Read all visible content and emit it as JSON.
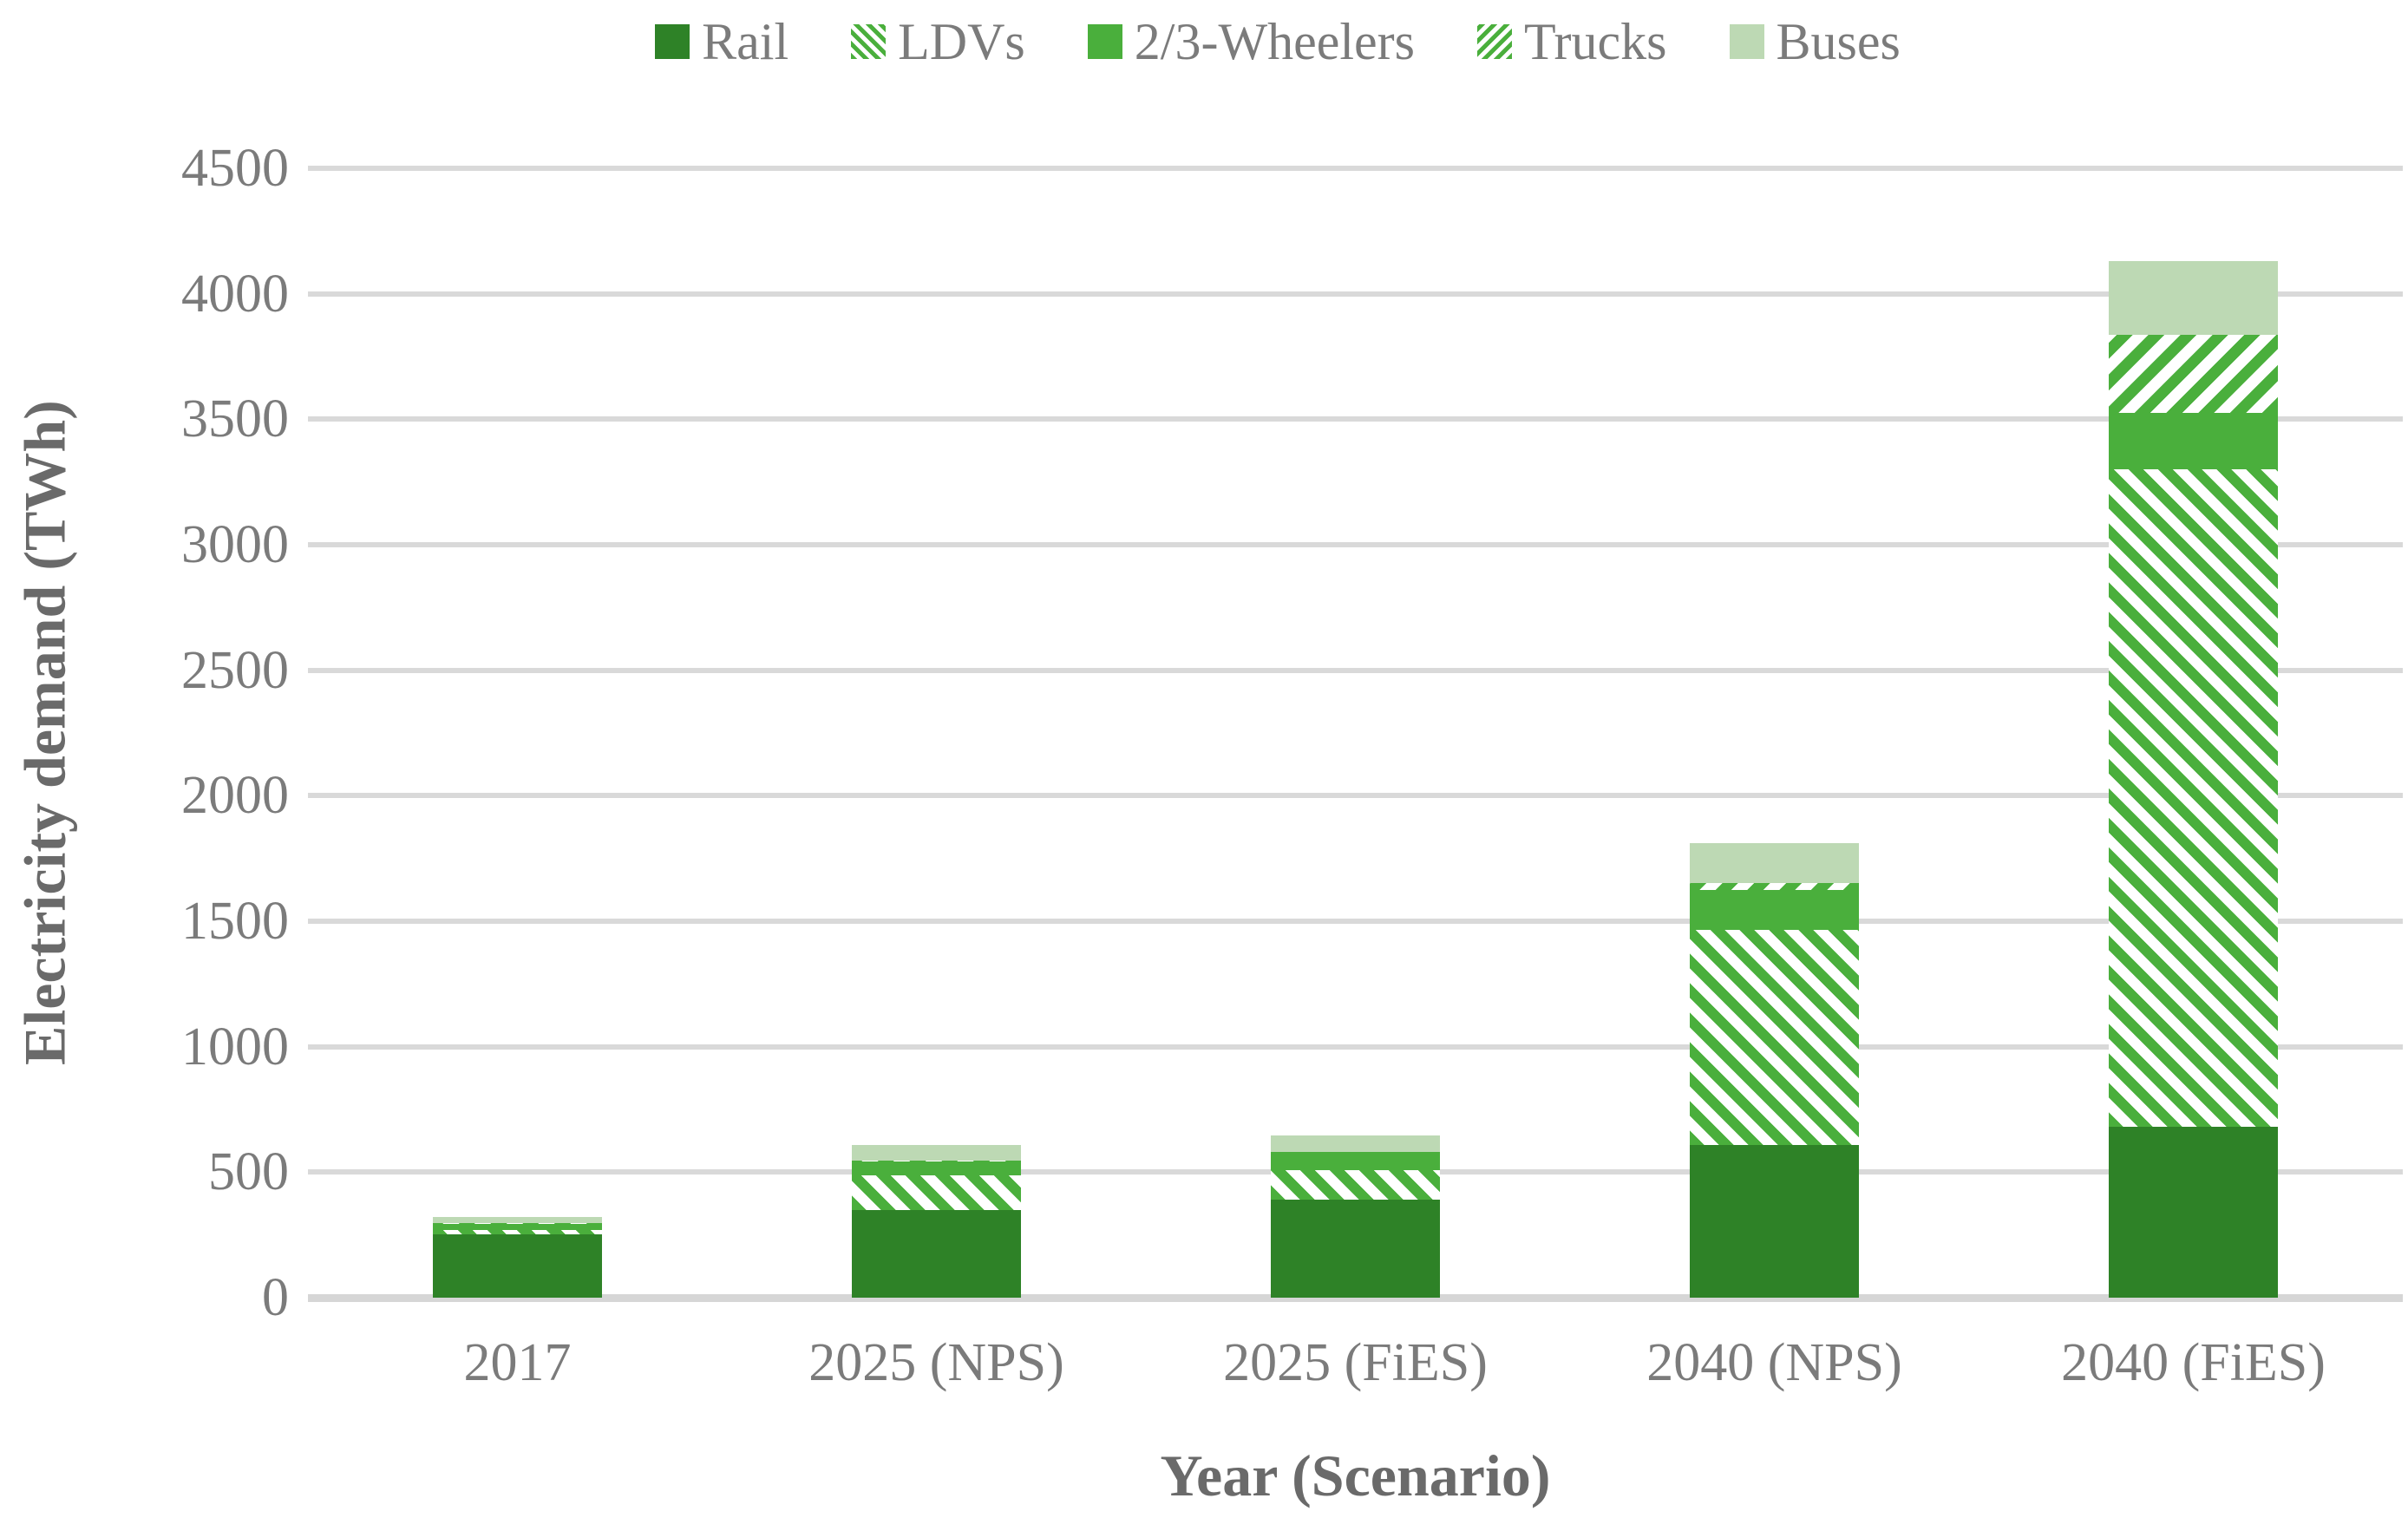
{
  "colors": {
    "rail_green": "#2E8227",
    "mid_green": "#4AAF3C",
    "buses_green": "#BDD9B4",
    "hatch_white": "#FFFFFF",
    "tick_text": "#7B7B7B",
    "title_text": "#6A6A6A",
    "gridline": "#D9D9D9",
    "axis_line": "#D6D6D6",
    "background": "#FFFFFF"
  },
  "chart_data": {
    "type": "bar",
    "stacked": true,
    "title": "",
    "xlabel": "Year (Scenario)",
    "ylabel": "Electricity demand (TWh)",
    "categories": [
      "2017",
      "2025 (NPS)",
      "2025 (FiES)",
      "2040 (NPS)",
      "2040 (FiES)"
    ],
    "series": [
      {
        "name": "Rail",
        "slug": "rail",
        "fill": "solid",
        "color": "#2E8227",
        "values": [
          253,
          350,
          390,
          610,
          680
        ]
      },
      {
        "name": "LDVs",
        "slug": "ldvs",
        "fill": "hatch-backslash",
        "color": "#4AAF3C",
        "values": [
          17,
          138,
          117,
          855,
          2620
        ]
      },
      {
        "name": "2/3-Wheelers",
        "slug": "two-three-wheelers",
        "fill": "solid",
        "color": "#4AAF3C",
        "values": [
          24,
          55,
          72,
          160,
          225
        ]
      },
      {
        "name": "Trucks",
        "slug": "trucks",
        "fill": "hatch-slash",
        "color": "#4AAF3C",
        "values": [
          2,
          3,
          3,
          26,
          310
        ]
      },
      {
        "name": "Buses",
        "slug": "buses",
        "fill": "solid",
        "color": "#BDD9B4",
        "values": [
          24,
          62,
          65,
          160,
          295
        ]
      }
    ],
    "totals": [
      320,
      608,
      647,
      1811,
      4130
    ],
    "ylim": [
      0,
      4500
    ],
    "yticks": [
      0,
      500,
      1000,
      1500,
      2000,
      2500,
      3000,
      3500,
      4000,
      4500
    ],
    "grid": "horizontal",
    "legend_position": "top"
  }
}
